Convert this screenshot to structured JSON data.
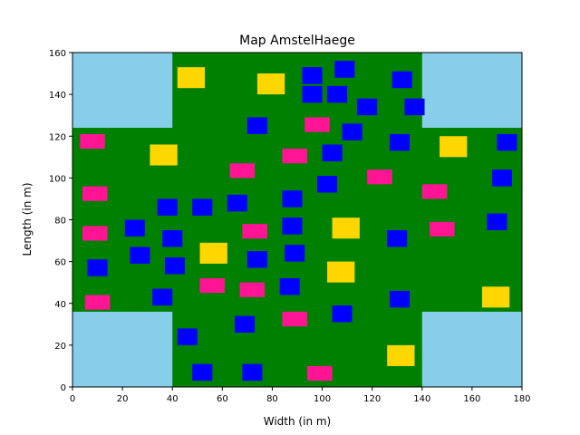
{
  "chart_data": {
    "type": "map",
    "title": "Map AmstelHaege",
    "xlabel": "Width (in m)",
    "ylabel": "Length (in m)",
    "xlim": [
      0,
      180
    ],
    "ylim": [
      0,
      160
    ],
    "xticks": [
      0,
      20,
      40,
      60,
      80,
      100,
      120,
      140,
      160,
      180
    ],
    "yticks": [
      0,
      20,
      40,
      60,
      80,
      100,
      120,
      140,
      160
    ],
    "grid": false,
    "colors": {
      "background": "#008000",
      "water": "#87ceeb",
      "blue": "#0000ff",
      "pink": "#ff1493",
      "yellow": "#ffd700"
    },
    "water": [
      {
        "x": 0,
        "y": 124,
        "w": 40,
        "h": 36
      },
      {
        "x": 140,
        "y": 124,
        "w": 40,
        "h": 36
      },
      {
        "x": 0,
        "y": 0,
        "w": 40,
        "h": 36
      },
      {
        "x": 140,
        "y": 0,
        "w": 40,
        "h": 36
      }
    ],
    "houses_blue": [
      [
        92,
        145,
        8,
        8
      ],
      [
        105,
        148,
        8,
        8
      ],
      [
        128,
        143,
        8,
        8
      ],
      [
        92,
        136,
        8,
        8
      ],
      [
        102,
        136,
        8,
        8
      ],
      [
        114,
        130,
        8,
        8
      ],
      [
        133,
        130,
        8,
        8
      ],
      [
        70,
        121,
        8,
        8
      ],
      [
        108,
        118,
        8,
        8
      ],
      [
        127,
        113,
        8,
        8
      ],
      [
        100,
        108,
        8,
        8
      ],
      [
        170,
        113,
        8,
        8
      ],
      [
        98,
        93,
        8,
        8
      ],
      [
        168,
        96,
        8,
        8
      ],
      [
        84,
        86,
        8,
        8
      ],
      [
        34,
        82,
        8,
        8
      ],
      [
        48,
        82,
        8,
        8
      ],
      [
        62,
        84,
        8,
        8
      ],
      [
        84,
        73,
        8,
        8
      ],
      [
        21,
        72,
        8,
        8
      ],
      [
        36,
        67,
        8,
        8
      ],
      [
        126,
        67,
        8,
        8
      ],
      [
        166,
        75,
        8,
        8
      ],
      [
        23,
        59,
        8,
        8
      ],
      [
        85,
        60,
        8,
        8
      ],
      [
        70,
        57,
        8,
        8
      ],
      [
        37,
        54,
        8,
        8
      ],
      [
        6,
        53,
        8,
        8
      ],
      [
        83,
        44,
        8,
        8
      ],
      [
        32,
        39,
        8,
        8
      ],
      [
        127,
        38,
        8,
        8
      ],
      [
        104,
        31,
        8,
        8
      ],
      [
        65,
        26,
        8,
        8
      ],
      [
        42,
        20,
        8,
        8
      ],
      [
        48,
        3,
        8,
        8
      ],
      [
        68,
        3,
        8,
        8
      ]
    ],
    "houses_pink": [
      [
        3,
        114,
        10,
        7
      ],
      [
        93,
        122,
        10,
        7
      ],
      [
        84,
        107,
        10,
        7
      ],
      [
        63,
        100,
        10,
        7
      ],
      [
        118,
        97,
        10,
        7
      ],
      [
        140,
        90,
        10,
        7
      ],
      [
        4,
        89,
        10,
        7
      ],
      [
        68,
        71,
        10,
        7
      ],
      [
        4,
        70,
        10,
        7
      ],
      [
        143,
        72,
        10,
        7
      ],
      [
        51,
        45,
        10,
        7
      ],
      [
        67,
        43,
        10,
        7
      ],
      [
        5,
        37,
        10,
        7
      ],
      [
        84,
        29,
        10,
        7
      ],
      [
        94,
        3,
        10,
        7
      ]
    ],
    "houses_yellow": [
      [
        42,
        143,
        11,
        10
      ],
      [
        74,
        140,
        11,
        10
      ],
      [
        31,
        106,
        11,
        10
      ],
      [
        147,
        110,
        11,
        10
      ],
      [
        104,
        71,
        11,
        10
      ],
      [
        51,
        59,
        11,
        10
      ],
      [
        102,
        50,
        11,
        10
      ],
      [
        164,
        38,
        11,
        10
      ],
      [
        126,
        10,
        11,
        10
      ]
    ]
  }
}
